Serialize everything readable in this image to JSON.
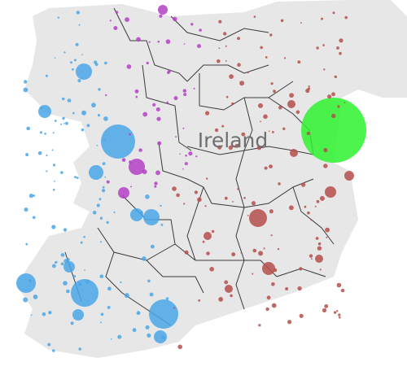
{
  "map": {
    "country_label": "Ireland",
    "colors": {
      "land": "#e7e7e7",
      "land_border": "#3a3a3a",
      "west": "#4aa6e8",
      "northwest": "#b33fc4",
      "east": "#b54d4b",
      "capital": "#2ff22f"
    }
  }
}
